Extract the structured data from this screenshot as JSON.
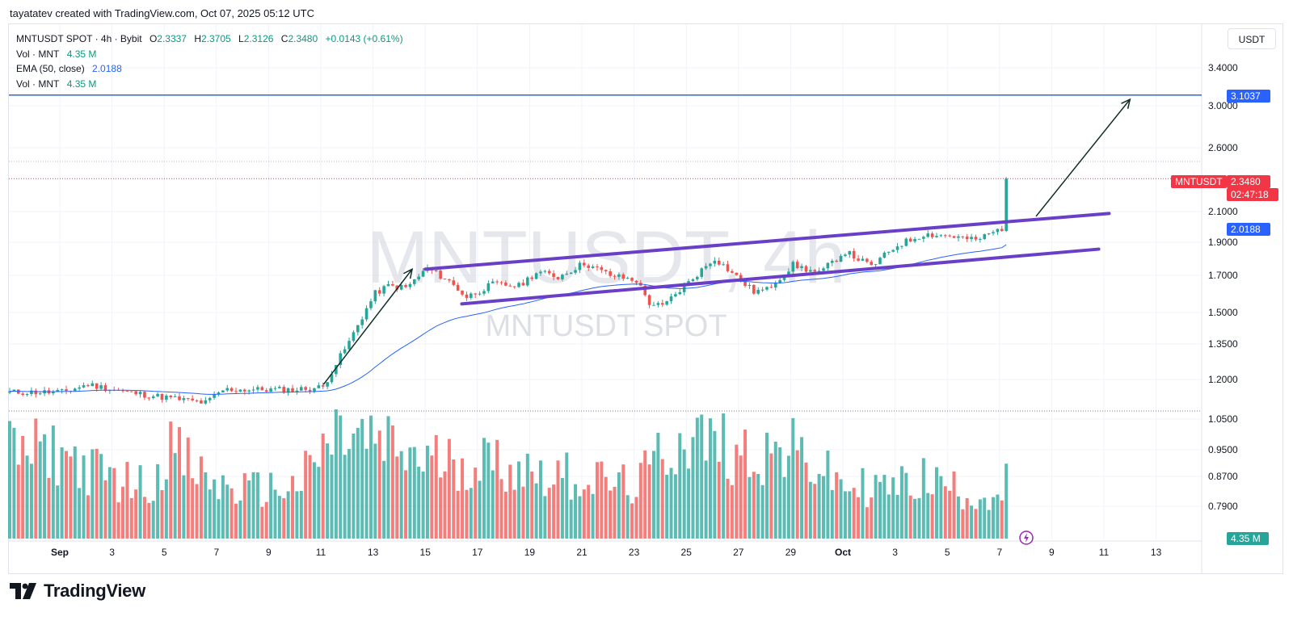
{
  "caption": "tayatatev created with TradingView.com, Oct 07, 2025 05:12 UTC",
  "legend": {
    "symbol_line": "MNTUSDT SPOT · 4h · Bybit",
    "o_label": "O",
    "o_value": "2.3337",
    "h_label": "H",
    "h_value": "2.3705",
    "l_label": "L",
    "l_value": "2.3126",
    "c_label": "C",
    "c_value": "2.3480",
    "change": "+0.0143 (+0.61%)",
    "vol_label": "Vol · MNT",
    "vol_value": "4.35 M",
    "ema_label": "EMA (50, close)",
    "ema_value": "2.0188",
    "vol2_label": "Vol · MNT",
    "vol2_value": "4.35 M"
  },
  "currency": "USDT",
  "watermark": {
    "main": "MNTUSDT, 4h",
    "sub": "MNTUSDT SPOT"
  },
  "tags": {
    "last_price": "2.3480",
    "countdown": "02:47:18",
    "symbol": "MNTUSDT",
    "hline": "3.1037",
    "ema": "2.0188",
    "volume": "4.35 M"
  },
  "footer": {
    "brand": "TradingView"
  },
  "colors": {
    "up": "#26a69a",
    "down": "#ef5350",
    "ema": "#2962ff",
    "channel": "#6a3fc8",
    "hline": "#2962ff",
    "arrow": "#0f2e24"
  },
  "chart_data": {
    "type": "candlestick",
    "interval": "4h",
    "price_axis": {
      "labels": [
        "3.4000",
        "3.0000",
        "2.6000",
        "2.1000",
        "1.9000",
        "1.7000",
        "1.5000",
        "1.3500",
        "1.2000",
        "1.0500",
        "0.9500",
        "0.8700",
        "0.7900"
      ],
      "scale": "log"
    },
    "time_axis": {
      "labels": [
        "Sep",
        "3",
        "5",
        "7",
        "9",
        "11",
        "13",
        "15",
        "17",
        "19",
        "21",
        "23",
        "25",
        "27",
        "29",
        "Oct",
        "3",
        "5",
        "7",
        "9",
        "11",
        "13"
      ],
      "bold": [
        "Sep",
        "Oct"
      ]
    },
    "horizontal_line": 3.1037,
    "last_close": 2.348,
    "ema50_last": 2.0188,
    "channel_upper": [
      [
        14.0,
        1.735
      ],
      [
        40.2,
        2.09
      ]
    ],
    "channel_lower": [
      [
        15.4,
        1.545
      ],
      [
        39.8,
        1.855
      ]
    ],
    "arrows": [
      [
        [
          10.1,
          1.18
        ],
        [
          13.5,
          1.735
        ]
      ],
      [
        [
          37.4,
          2.07
        ],
        [
          41.0,
          3.06
        ]
      ]
    ],
    "keypoints": [
      [
        0,
        1.15
      ],
      [
        1,
        1.18
      ],
      [
        2.5,
        1.15
      ],
      [
        4,
        1.13
      ],
      [
        5.5,
        1.11
      ],
      [
        6.2,
        1.16
      ],
      [
        8,
        1.16
      ],
      [
        9,
        1.16
      ],
      [
        10,
        1.17
      ],
      [
        11,
        1.36
      ],
      [
        12,
        1.6
      ],
      [
        12.5,
        1.64
      ],
      [
        13.2,
        1.63
      ],
      [
        14,
        1.74
      ],
      [
        14.8,
        1.67
      ],
      [
        15.5,
        1.58
      ],
      [
        16.5,
        1.65
      ],
      [
        17.5,
        1.64
      ],
      [
        18.2,
        1.72
      ],
      [
        19,
        1.69
      ],
      [
        20,
        1.77
      ],
      [
        21,
        1.7
      ],
      [
        22,
        1.67
      ],
      [
        22.5,
        1.55
      ],
      [
        23,
        1.53
      ],
      [
        24,
        1.66
      ],
      [
        25,
        1.8
      ],
      [
        26,
        1.67
      ],
      [
        26.5,
        1.61
      ],
      [
        27,
        1.62
      ],
      [
        28,
        1.76
      ],
      [
        29,
        1.71
      ],
      [
        30,
        1.84
      ],
      [
        31,
        1.75
      ],
      [
        32,
        1.88
      ],
      [
        33,
        1.95
      ],
      [
        34,
        1.94
      ],
      [
        35,
        1.91
      ],
      [
        36,
        1.99
      ],
      [
        36.8,
        2.08
      ],
      [
        37.2,
        2.15
      ],
      [
        37.5,
        2.45
      ],
      [
        37.8,
        2.36
      ],
      [
        38,
        2.35
      ]
    ],
    "volume_keypoints": [
      [
        0,
        5.0
      ],
      [
        1,
        4.0
      ],
      [
        2,
        3.5
      ],
      [
        3.5,
        3.0
      ],
      [
        4,
        5.5
      ],
      [
        5,
        4.0
      ],
      [
        6,
        3.0
      ],
      [
        7,
        2.8
      ],
      [
        9,
        3.0
      ],
      [
        10.5,
        6.0
      ],
      [
        12,
        5.5
      ],
      [
        14,
        4.5
      ],
      [
        16,
        4.5
      ],
      [
        18,
        4.0
      ],
      [
        20,
        3.5
      ],
      [
        22,
        3.0
      ],
      [
        23,
        5.0
      ],
      [
        24,
        6.0
      ],
      [
        26,
        5.0
      ],
      [
        28,
        5.0
      ],
      [
        29,
        4.0
      ],
      [
        30,
        3.0
      ],
      [
        32,
        3.0
      ],
      [
        33,
        3.5
      ],
      [
        35,
        2.5
      ],
      [
        36,
        2.5
      ],
      [
        37,
        3.5
      ],
      [
        37.6,
        6.0
      ],
      [
        38,
        4.35
      ]
    ],
    "volume_last": "4.35 M"
  }
}
